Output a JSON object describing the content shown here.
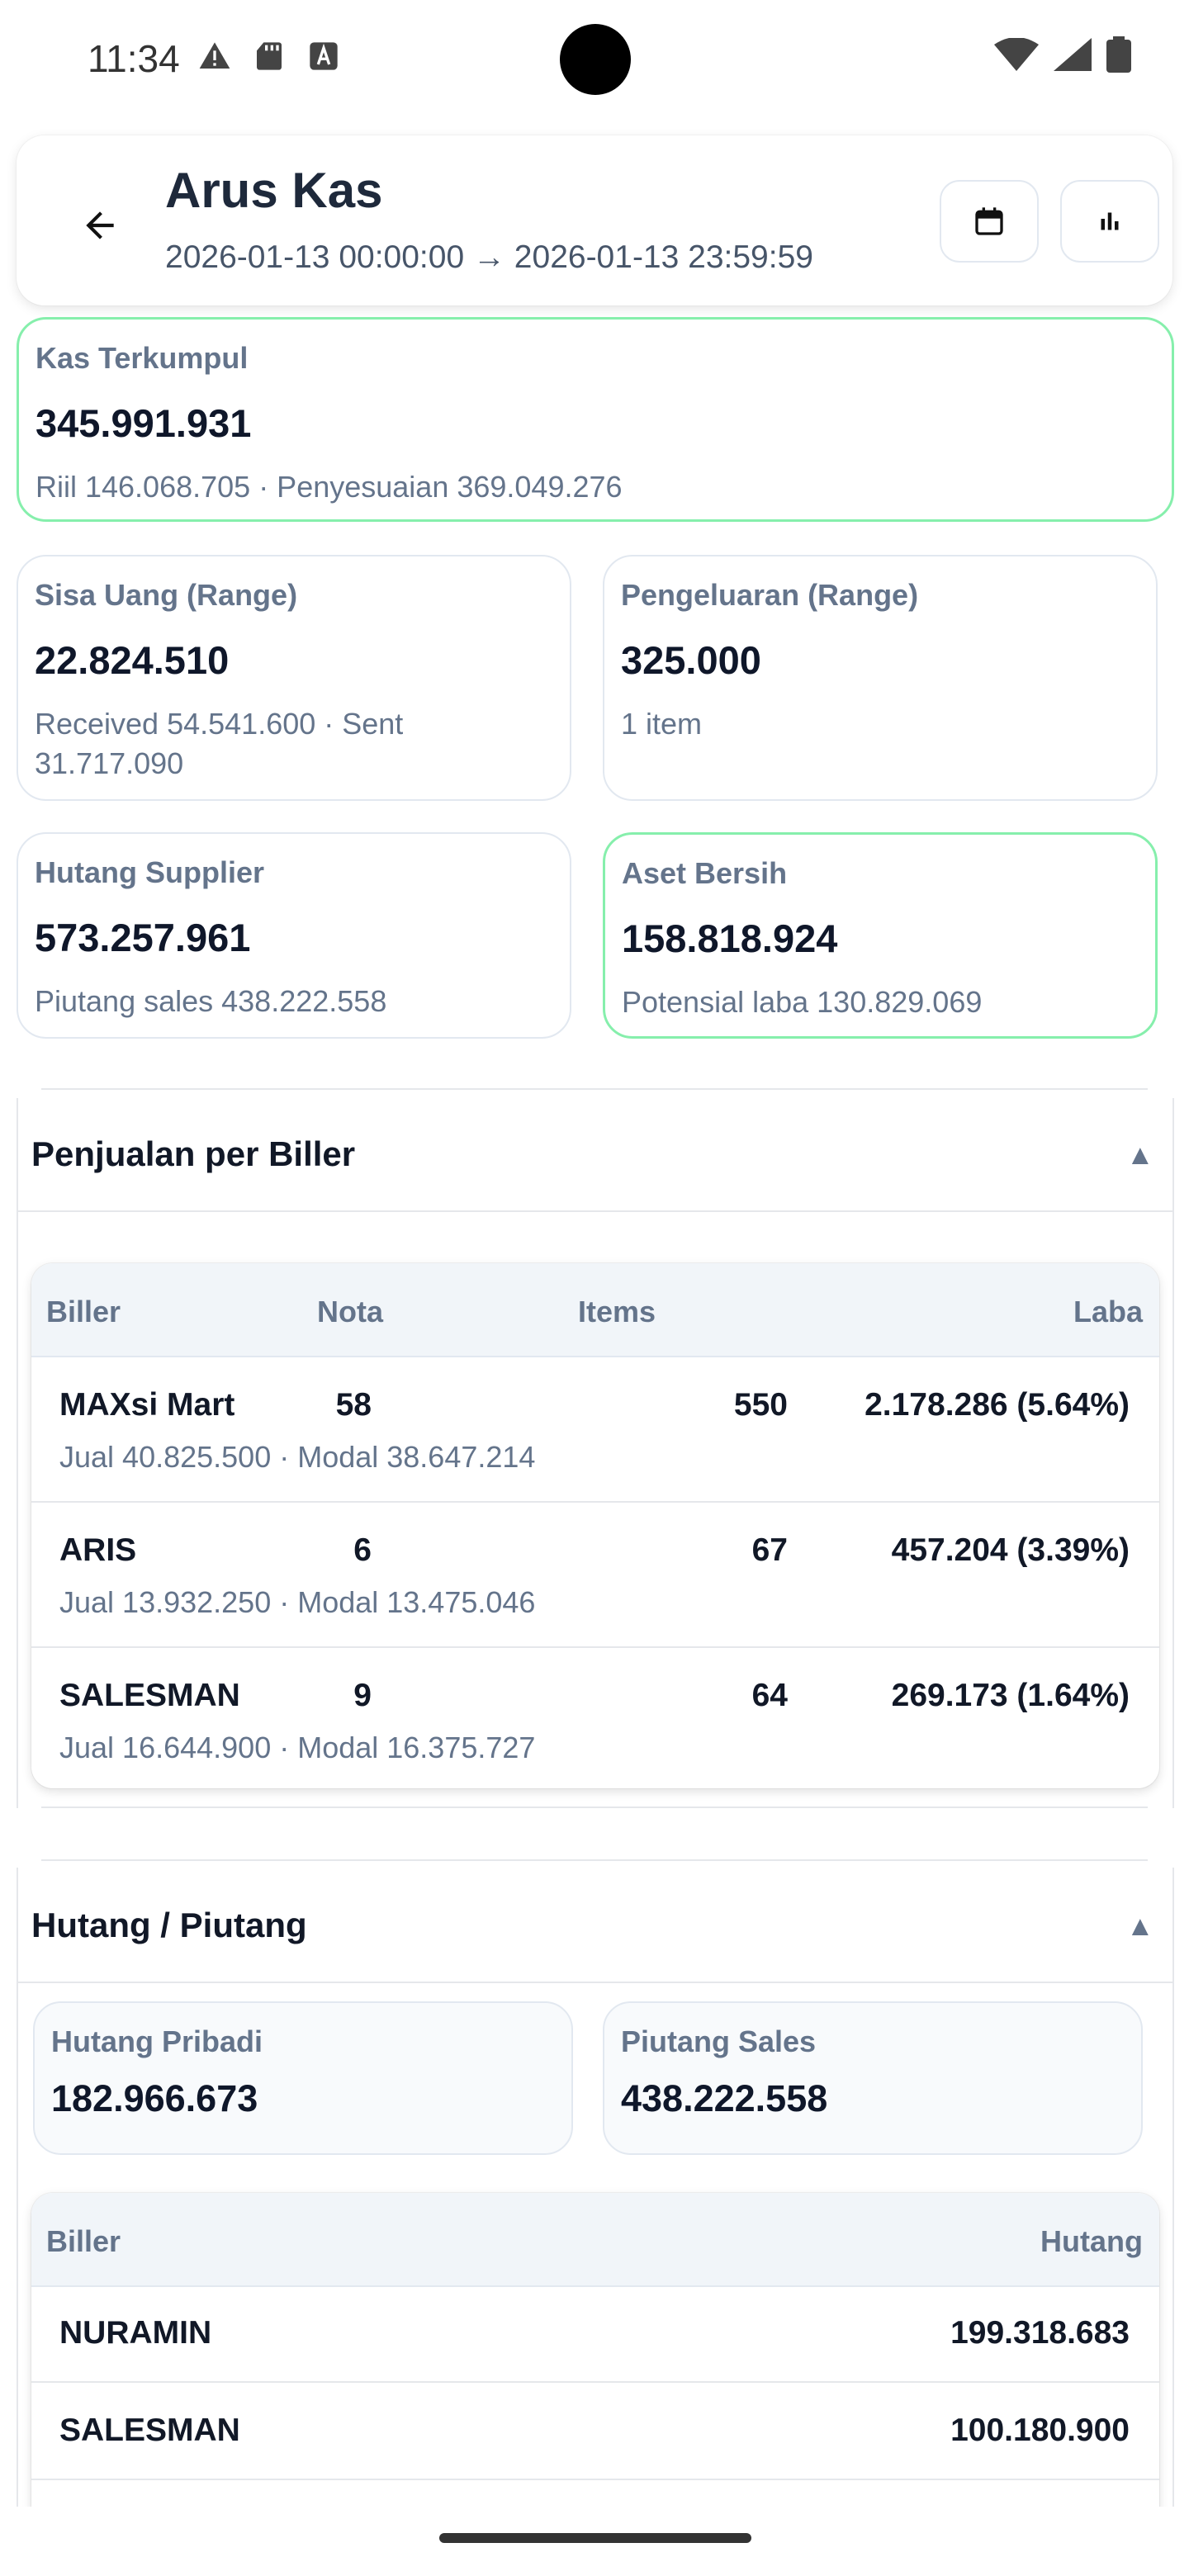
{
  "status_bar": {
    "time": "11:34",
    "left_icons": [
      "warning-icon",
      "sd-card-icon",
      "text-a-icon"
    ],
    "right_icons": [
      "wifi-icon",
      "signal-icon",
      "battery-icon"
    ]
  },
  "header": {
    "title": "Arus Kas",
    "range": "2026-01-13 00:00:00 → 2026-01-13 23:59:59"
  },
  "cards": {
    "kas": {
      "label": "Kas Terkumpul",
      "value": "345.991.931",
      "sub": "Riil 146.068.705 · Penyesuaian 369.049.276"
    },
    "sisa": {
      "label": "Sisa Uang (Range)",
      "value": "22.824.510",
      "sub": "Received 54.541.600 · Sent 31.717.090"
    },
    "pengeluaran": {
      "label": "Pengeluaran (Range)",
      "value": "325.000",
      "sub": "1 item"
    },
    "hutang_supplier": {
      "label": "Hutang Supplier",
      "value": "573.257.961",
      "sub": "Piutang sales 438.222.558"
    },
    "aset": {
      "label": "Aset Bersih",
      "value": "158.818.924",
      "sub": "Potensial laba 130.829.069"
    }
  },
  "penjualan": {
    "title": "Penjualan per Biller",
    "toggle": "▲",
    "columns": [
      "Biller",
      "Nota",
      "Items",
      "Laba"
    ],
    "rows": [
      {
        "name": "MAXsi Mart",
        "sub": "Jual 40.825.500 · Modal 38.647.214",
        "nota": "58",
        "items": "550",
        "laba": "2.178.286 (5.64%)"
      },
      {
        "name": "ARIS",
        "sub": "Jual 13.932.250 · Modal 13.475.046",
        "nota": "6",
        "items": "67",
        "laba": "457.204 (3.39%)"
      },
      {
        "name": "SALESMAN",
        "sub": "Jual 16.644.900 · Modal 16.375.727",
        "nota": "9",
        "items": "64",
        "laba": "269.173 (1.64%)"
      }
    ]
  },
  "hutang_piutang": {
    "title": "Hutang / Piutang",
    "toggle": "▲",
    "hutang_pribadi": {
      "label": "Hutang Pribadi",
      "value": "182.966.673"
    },
    "piutang_sales": {
      "label": "Piutang Sales",
      "value": "438.222.558"
    },
    "columns": [
      "Biller",
      "Hutang"
    ],
    "rows": [
      {
        "name": "NURAMIN",
        "hutang": "199.318.683"
      },
      {
        "name": "SALESMAN",
        "hutang": "100.180.900"
      }
    ]
  }
}
